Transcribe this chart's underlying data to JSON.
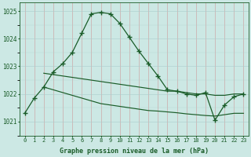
{
  "hours": [
    0,
    1,
    2,
    3,
    4,
    5,
    6,
    7,
    8,
    9,
    10,
    11,
    12,
    13,
    14,
    15,
    16,
    17,
    18,
    19,
    20,
    21,
    22,
    23
  ],
  "line_main": [
    1021.3,
    1021.85,
    1022.25,
    1022.8,
    1023.1,
    1023.5,
    1024.2,
    1024.9,
    1024.95,
    1024.9,
    1024.55,
    1024.05,
    1023.55,
    1023.1,
    1022.65,
    1022.15,
    1022.1,
    1022.0,
    1021.95,
    1022.05,
    1021.05,
    1021.6,
    1021.9,
    1022.0
  ],
  "line_upper": [
    null,
    null,
    1022.75,
    1022.7,
    1022.65,
    1022.6,
    1022.55,
    1022.5,
    1022.45,
    1022.4,
    1022.35,
    1022.3,
    1022.25,
    1022.2,
    1022.15,
    1022.1,
    1022.1,
    1022.05,
    1022.0,
    1022.0,
    1021.95,
    1021.95,
    1022.0,
    1022.0
  ],
  "line_lower": [
    null,
    null,
    1022.25,
    1022.15,
    1022.05,
    1021.95,
    1021.85,
    1021.75,
    1021.65,
    1021.6,
    1021.55,
    1021.5,
    1021.45,
    1021.4,
    1021.38,
    1021.35,
    1021.32,
    1021.28,
    1021.25,
    1021.22,
    1021.2,
    1021.25,
    1021.3,
    1021.3
  ],
  "bg_color": "#cce8e4",
  "grid_color_major": "#aacccc",
  "line_color": "#1a5c28",
  "ylim_min": 1020.5,
  "ylim_max": 1025.3,
  "yticks": [
    1021,
    1022,
    1023,
    1024,
    1025
  ],
  "xlabel": "Graphe pression niveau de la mer (hPa)"
}
